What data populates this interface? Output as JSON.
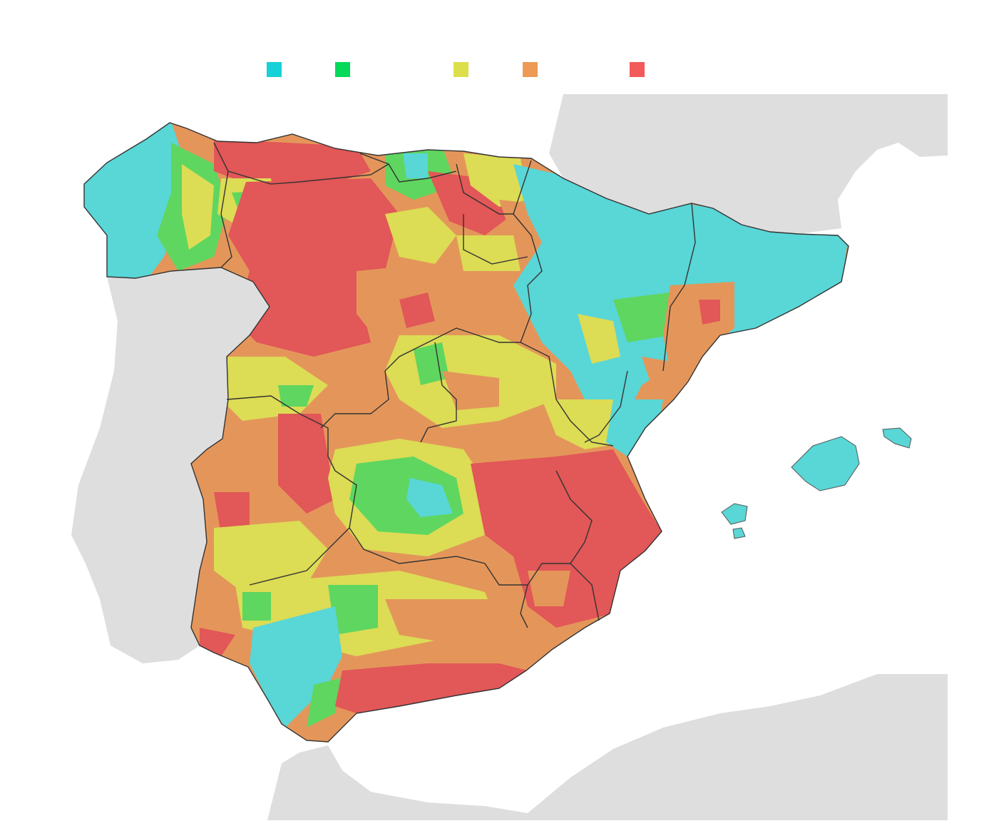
{
  "legend": {
    "items": [
      {
        "color": "#16d1d7"
      },
      {
        "color": "#06d95a"
      },
      {
        "color": "#dcdf4a"
      },
      {
        "color": "#ec9a55"
      },
      {
        "color": "#f35a5a"
      }
    ]
  },
  "map": {
    "colors": {
      "background": "#ffffff",
      "land_other": "#dedede",
      "cyan": "#59d6d6",
      "green": "#5fd65f",
      "yellow": "#dcdc55",
      "orange": "#e4965a",
      "red": "#e25757",
      "border": "#333333"
    },
    "region_icons": [
      "iberian-peninsula",
      "portugal",
      "france",
      "north-africa",
      "balearic-islands"
    ]
  }
}
